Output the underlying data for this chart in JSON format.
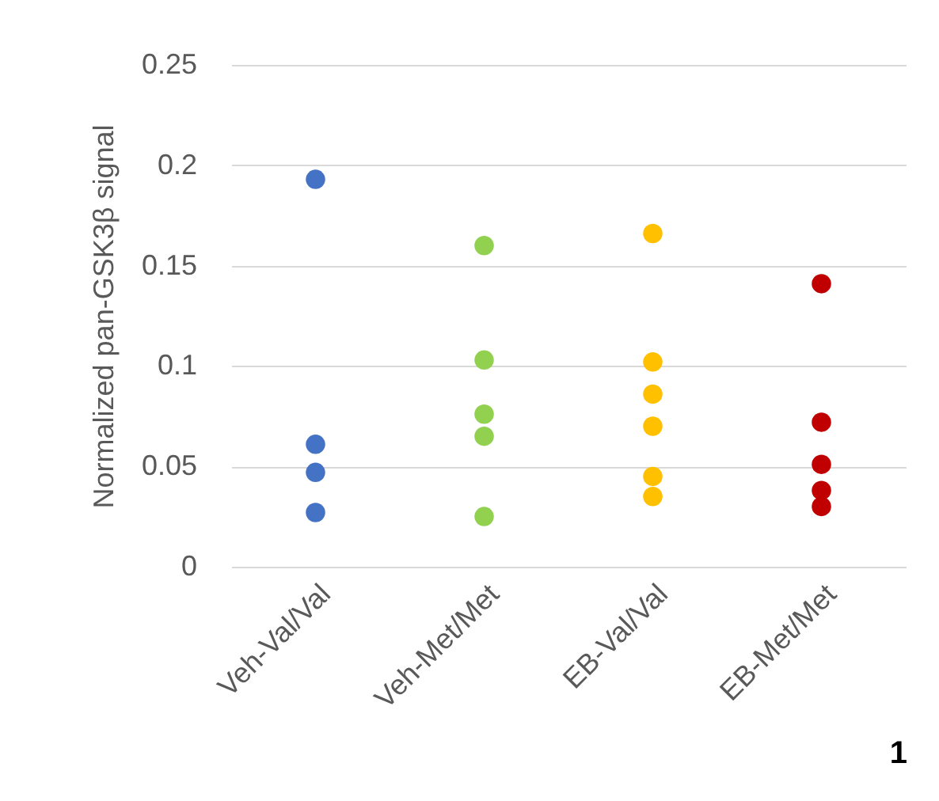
{
  "chart_data": {
    "type": "scatter",
    "ylabel": "Normalized pan-GSK3β signal",
    "categories": [
      "Veh-Val/Val",
      "Veh-Met/Met",
      "EB-Val/Val",
      "EB-Met/Met"
    ],
    "series": [
      {
        "color": "#4472c4",
        "x": [
          "Veh-Val/Val",
          "Veh-Val/Val",
          "Veh-Val/Val",
          "Veh-Val/Val"
        ],
        "values": [
          0.193,
          0.061,
          0.047,
          0.027
        ]
      },
      {
        "color": "#92d050",
        "x": [
          "Veh-Met/Met",
          "Veh-Met/Met",
          "Veh-Met/Met",
          "Veh-Met/Met",
          "Veh-Met/Met"
        ],
        "values": [
          0.16,
          0.103,
          0.076,
          0.065,
          0.025
        ]
      },
      {
        "color": "#ffc000",
        "x": [
          "EB-Val/Val",
          "EB-Val/Val",
          "EB-Val/Val",
          "EB-Val/Val",
          "EB-Val/Val",
          "EB-Val/Val"
        ],
        "values": [
          0.166,
          0.102,
          0.086,
          0.07,
          0.045,
          0.035
        ]
      },
      {
        "color": "#c00000",
        "x": [
          "EB-Met/Met",
          "EB-Met/Met",
          "EB-Met/Met",
          "EB-Met/Met",
          "EB-Met/Met"
        ],
        "values": [
          0.141,
          0.072,
          0.051,
          0.038,
          0.03
        ]
      }
    ],
    "ylim": [
      0,
      0.25
    ],
    "yticks": [
      0,
      0.05,
      0.1,
      0.15,
      0.2,
      0.25
    ],
    "grid": "y",
    "marker": "circle",
    "legend": false,
    "annotations": [
      "1"
    ]
  }
}
